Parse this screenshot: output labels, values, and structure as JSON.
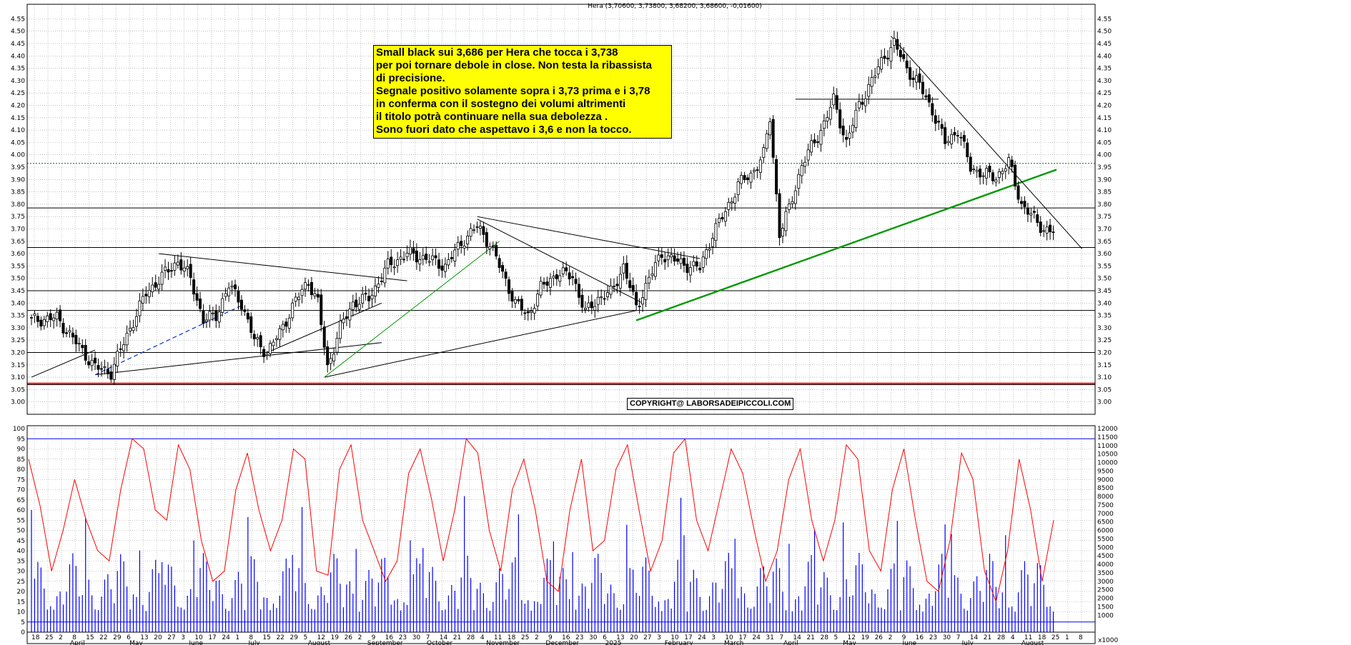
{
  "header": {
    "quote_title": "Hera (3,70600, 3,73800, 3,68200, 3,68600, -0,01600)"
  },
  "annotation": {
    "lines": [
      "Small black sui 3,686 per Hera che tocca i 3,738",
      "per poi tornare debole in close. Non testa la ribassista",
      "di precisione.",
      "Segnale positivo solamente sopra i 3,73 prima e i 3,78",
      "in conferma con il sostegno dei volumi altrimenti",
      "il titolo potrà continuare nella sua debolezza .",
      "Sono fuori dato che aspettavo i 3,6 e non la tocco."
    ],
    "background": "#ffff00"
  },
  "copyright": "COPYRIGHT@ LABORSADEIPICCOLI.COM",
  "colors": {
    "candles": "#000000",
    "support_red": "#ff0000",
    "trend_green": "#009900",
    "volume": "#0000ff",
    "oscillator": "#ff0000",
    "grid": "#999999"
  },
  "chart_data": [
    {
      "type": "candlestick",
      "title": "Hera (3,70600, 3,73800, 3,68200, 3,68600, -0,01600)",
      "last": {
        "open": 3.706,
        "high": 3.738,
        "low": 3.682,
        "close": 3.686,
        "change": -0.016
      },
      "ylim": [
        2.95,
        4.58
      ],
      "y_ticks": [
        "3.00",
        "3.05",
        "3.10",
        "3.15",
        "3.20",
        "3.25",
        "3.30",
        "3.35",
        "3.40",
        "3.45",
        "3.50",
        "3.55",
        "3.60",
        "3.65",
        "3.70",
        "3.75",
        "3.80",
        "3.85",
        "3.90",
        "3.95",
        "4.00",
        "4.05",
        "4.10",
        "4.15",
        "4.20",
        "4.25",
        "4.30",
        "4.35",
        "4.40",
        "4.45",
        "4.50",
        "4.55"
      ],
      "x_day_ticks": [
        "18",
        "25",
        "2",
        "8",
        "15",
        "22",
        "29",
        "6",
        "13",
        "20",
        "27",
        "3",
        "10",
        "17",
        "24",
        "1",
        "8",
        "15",
        "22",
        "29",
        "5",
        "12",
        "19",
        "26",
        "2",
        "9",
        "16",
        "23",
        "30",
        "7",
        "14",
        "21",
        "28",
        "4",
        "11",
        "18",
        "25",
        "2",
        "9",
        "16",
        "23",
        "30",
        "6",
        "13",
        "20",
        "27",
        "3",
        "10",
        "17",
        "24",
        "3",
        "10",
        "17",
        "24",
        "31",
        "7",
        "14",
        "21",
        "28",
        "5",
        "12",
        "19",
        "26",
        "2",
        "9",
        "16",
        "23",
        "30",
        "7",
        "14",
        "21",
        "28",
        "4",
        "11",
        "18",
        "25",
        "1",
        "8"
      ],
      "x_month_labels": [
        "April",
        "May",
        "June",
        "July",
        "August",
        "September",
        "October",
        "November",
        "December",
        "2025",
        "February",
        "March",
        "April",
        "May",
        "June",
        "July",
        "August"
      ],
      "horizontal_levels": [
        3.07,
        3.2,
        3.37,
        3.45,
        3.625,
        3.785
      ],
      "support_red": 3.075,
      "dotted_level": 3.965,
      "range_box_line": 4.225,
      "trend_points": [
        {
          "i": 0,
          "c": 3.33
        },
        {
          "i": 8,
          "c": 3.34
        },
        {
          "i": 14,
          "c": 3.24
        },
        {
          "i": 20,
          "c": 3.14
        },
        {
          "i": 25,
          "c": 3.12
        },
        {
          "i": 30,
          "c": 3.27
        },
        {
          "i": 36,
          "c": 3.44
        },
        {
          "i": 42,
          "c": 3.52
        },
        {
          "i": 46,
          "c": 3.57
        },
        {
          "i": 50,
          "c": 3.5
        },
        {
          "i": 54,
          "c": 3.33
        },
        {
          "i": 58,
          "c": 3.35
        },
        {
          "i": 62,
          "c": 3.47
        },
        {
          "i": 66,
          "c": 3.4
        },
        {
          "i": 70,
          "c": 3.25
        },
        {
          "i": 74,
          "c": 3.2
        },
        {
          "i": 78,
          "c": 3.28
        },
        {
          "i": 83,
          "c": 3.41
        },
        {
          "i": 87,
          "c": 3.49
        },
        {
          "i": 90,
          "c": 3.4
        },
        {
          "i": 93,
          "c": 3.14
        },
        {
          "i": 97,
          "c": 3.3
        },
        {
          "i": 101,
          "c": 3.4
        },
        {
          "i": 106,
          "c": 3.42
        },
        {
          "i": 112,
          "c": 3.55
        },
        {
          "i": 118,
          "c": 3.6
        },
        {
          "i": 124,
          "c": 3.58
        },
        {
          "i": 130,
          "c": 3.55
        },
        {
          "i": 136,
          "c": 3.66
        },
        {
          "i": 140,
          "c": 3.71
        },
        {
          "i": 144,
          "c": 3.64
        },
        {
          "i": 148,
          "c": 3.52
        },
        {
          "i": 152,
          "c": 3.4
        },
        {
          "i": 156,
          "c": 3.35
        },
        {
          "i": 160,
          "c": 3.46
        },
        {
          "i": 165,
          "c": 3.52
        },
        {
          "i": 170,
          "c": 3.51
        },
        {
          "i": 174,
          "c": 3.36
        },
        {
          "i": 178,
          "c": 3.42
        },
        {
          "i": 182,
          "c": 3.44
        },
        {
          "i": 186,
          "c": 3.55
        },
        {
          "i": 190,
          "c": 3.38
        },
        {
          "i": 194,
          "c": 3.5
        },
        {
          "i": 198,
          "c": 3.6
        },
        {
          "i": 204,
          "c": 3.56
        },
        {
          "i": 210,
          "c": 3.54
        },
        {
          "i": 214,
          "c": 3.68
        },
        {
          "i": 218,
          "c": 3.77
        },
        {
          "i": 222,
          "c": 3.88
        },
        {
          "i": 226,
          "c": 3.92
        },
        {
          "i": 230,
          "c": 4.0
        },
        {
          "i": 232,
          "c": 4.15
        },
        {
          "i": 235,
          "c": 3.68
        },
        {
          "i": 238,
          "c": 3.78
        },
        {
          "i": 242,
          "c": 3.96
        },
        {
          "i": 248,
          "c": 4.1
        },
        {
          "i": 252,
          "c": 4.22
        },
        {
          "i": 256,
          "c": 4.05
        },
        {
          "i": 260,
          "c": 4.2
        },
        {
          "i": 264,
          "c": 4.3
        },
        {
          "i": 268,
          "c": 4.4
        },
        {
          "i": 271,
          "c": 4.45
        },
        {
          "i": 275,
          "c": 4.35
        },
        {
          "i": 279,
          "c": 4.28
        },
        {
          "i": 283,
          "c": 4.18
        },
        {
          "i": 287,
          "c": 4.05
        },
        {
          "i": 291,
          "c": 4.1
        },
        {
          "i": 295,
          "c": 3.95
        },
        {
          "i": 299,
          "c": 3.92
        },
        {
          "i": 303,
          "c": 3.91
        },
        {
          "i": 307,
          "c": 3.97
        },
        {
          "i": 311,
          "c": 3.8
        },
        {
          "i": 315,
          "c": 3.74
        },
        {
          "i": 318,
          "c": 3.7
        },
        {
          "i": 321,
          "c": 3.686
        }
      ],
      "n_bars": 322
    },
    {
      "type": "line",
      "series": [
        {
          "values": [
            85,
            62,
            30,
            50,
            75,
            55,
            40,
            35,
            70,
            95,
            90,
            60,
            55,
            92,
            80,
            45,
            25,
            30,
            70,
            88,
            60,
            40,
            55,
            90,
            85,
            30,
            28,
            80,
            92,
            55,
            40,
            25,
            35,
            78,
            90,
            65,
            35,
            60,
            95,
            88,
            50,
            30,
            70,
            85,
            60,
            25,
            20,
            60,
            85,
            40,
            45,
            80,
            92,
            60,
            30,
            45,
            88,
            95,
            55,
            40,
            65,
            90,
            78,
            50,
            25,
            40,
            75,
            90,
            55,
            35,
            55,
            92,
            85,
            40,
            30,
            70,
            90,
            55,
            25,
            20,
            45,
            88,
            75,
            30,
            15,
            40,
            85,
            60,
            25,
            55
          ]
        }
      ],
      "ylim": [
        0,
        100
      ],
      "y_ticks": [
        "0",
        "5",
        "10",
        "15",
        "20",
        "25",
        "30",
        "35",
        "40",
        "45",
        "50",
        "55",
        "60",
        "65",
        "70",
        "75",
        "80",
        "85",
        "90",
        "95",
        "100"
      ],
      "levels": [
        5,
        95
      ]
    },
    {
      "type": "bar",
      "series": [
        {
          "values": []
        }
      ],
      "ylim": [
        0,
        12000
      ],
      "y_ticks": [
        "1000",
        "1500",
        "2000",
        "2500",
        "3000",
        "3500",
        "4000",
        "4500",
        "5000",
        "5500",
        "6000",
        "6500",
        "7000",
        "7500",
        "8000",
        "8500",
        "9000",
        "9500",
        "10000",
        "10500",
        "11000",
        "11500",
        "12000"
      ],
      "unit_label": "x1000"
    }
  ]
}
